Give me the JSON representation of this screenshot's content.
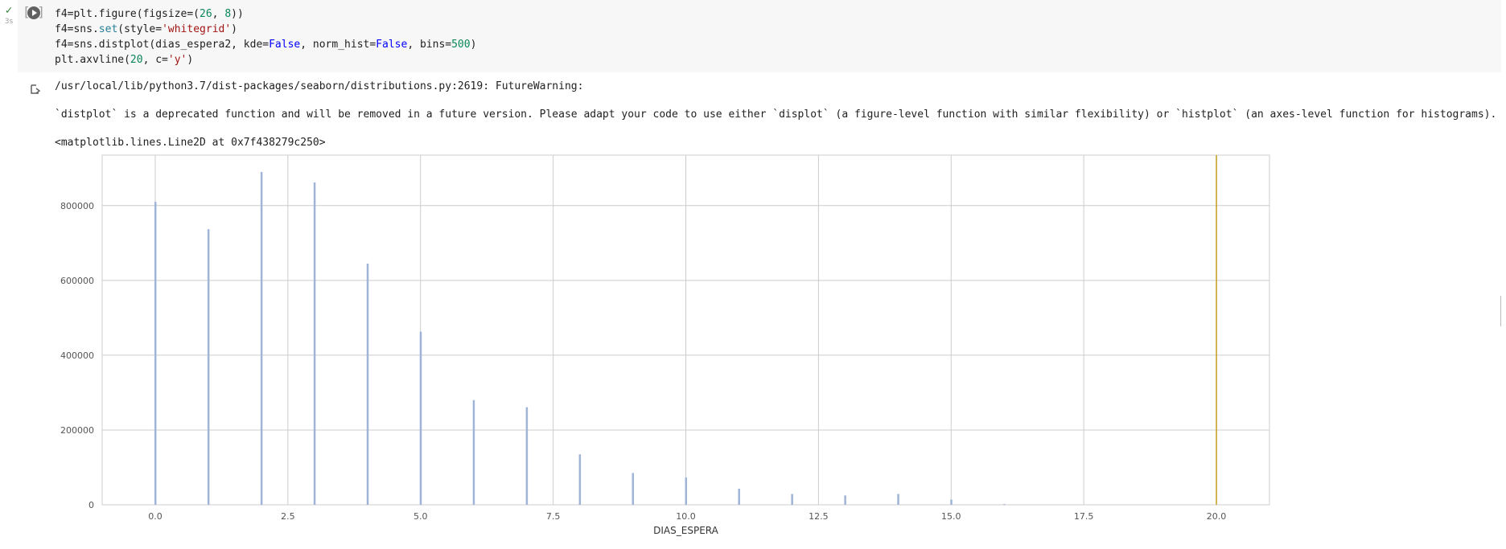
{
  "cell": {
    "status": "✓",
    "duration": "3s",
    "code_lines": [
      [
        {
          "t": "f4=plt.figure(figsize=("
        },
        {
          "t": "26",
          "c": "num"
        },
        {
          "t": ", "
        },
        {
          "t": "8",
          "c": "num"
        },
        {
          "t": "))"
        }
      ],
      [
        {
          "t": "f4=sns."
        },
        {
          "t": "set",
          "c": "fn"
        },
        {
          "t": "(style="
        },
        {
          "t": "'whitegrid'",
          "c": "str"
        },
        {
          "t": ")"
        }
      ],
      [
        {
          "t": "f4=sns.distplot(dias_espera2, kde="
        },
        {
          "t": "False",
          "c": "kw"
        },
        {
          "t": ", norm_hist="
        },
        {
          "t": "False",
          "c": "kw"
        },
        {
          "t": ", bins="
        },
        {
          "t": "500",
          "c": "num"
        },
        {
          "t": ")"
        }
      ],
      [
        {
          "t": "plt.axvline("
        },
        {
          "t": "20",
          "c": "num"
        },
        {
          "t": ", c="
        },
        {
          "t": "'y'",
          "c": "str"
        },
        {
          "t": ")"
        }
      ]
    ]
  },
  "output": {
    "warning_path": "/usr/local/lib/python3.7/dist-packages/seaborn/distributions.py:2619: FutureWarning:",
    "warning_text": "`distplot` is a deprecated function and will be removed in a future version. Please adapt your code to use either `displot` (a figure-level function with similar flexibility) or `histplot` (an axes-level function for histograms).",
    "repr": "<matplotlib.lines.Line2D at 0x7f438279c250>"
  },
  "chart_data": {
    "type": "bar",
    "xlabel": "DIAS_ESPERA",
    "ylabel": "",
    "xlim": [
      -1,
      21
    ],
    "ylim": [
      0,
      935000
    ],
    "xticks": [
      0.0,
      2.5,
      5.0,
      7.5,
      10.0,
      12.5,
      15.0,
      17.5,
      20.0
    ],
    "xtick_labels": [
      "0.0",
      "2.5",
      "5.0",
      "7.5",
      "10.0",
      "12.5",
      "15.0",
      "17.5",
      "20.0"
    ],
    "yticks": [
      0,
      200000,
      400000,
      600000,
      800000
    ],
    "ytick_labels": [
      "0",
      "200000",
      "400000",
      "600000",
      "800000"
    ],
    "grid": true,
    "bar_color": "#9fb4d6",
    "x": [
      0,
      1,
      2,
      3,
      4,
      5,
      6,
      7,
      8,
      9,
      10,
      11,
      12,
      13,
      14,
      15,
      16
    ],
    "values": [
      810000,
      737000,
      890000,
      862000,
      645000,
      463000,
      280000,
      261000,
      135000,
      85000,
      73000,
      43000,
      29000,
      25000,
      29000,
      14000,
      2000
    ],
    "vline": {
      "x": 20,
      "color": "#c9a227"
    }
  }
}
